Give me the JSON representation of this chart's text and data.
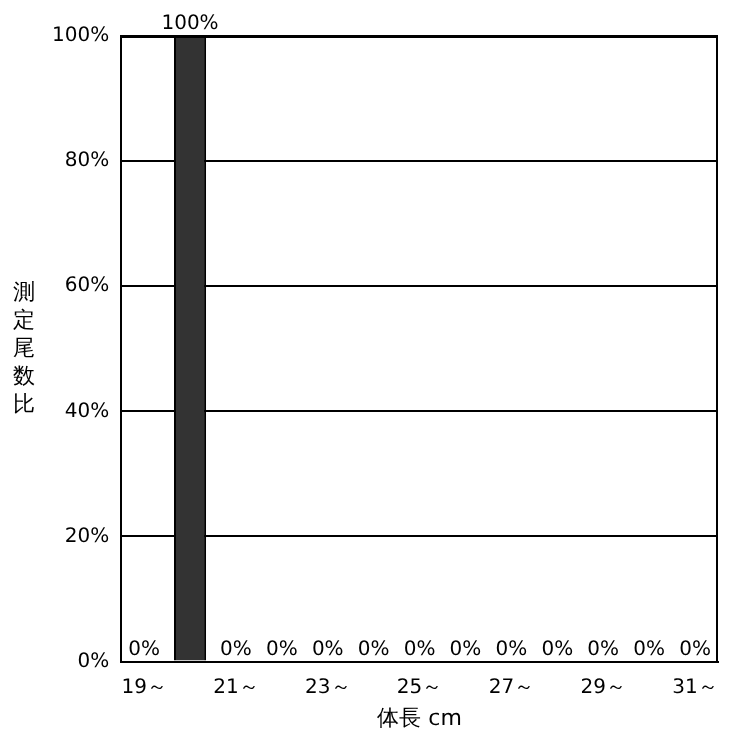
{
  "chart_data": {
    "type": "bar",
    "xlabel": "体長 cm",
    "ylabel": "測定尾数比",
    "categories": [
      "19～",
      null,
      "21～",
      null,
      "23～",
      null,
      "25～",
      null,
      "27～",
      null,
      "29～",
      null,
      "31～"
    ],
    "values": [
      0,
      100,
      0,
      0,
      0,
      0,
      0,
      0,
      0,
      0,
      0,
      0,
      0
    ],
    "value_labels": [
      "0%",
      "100%",
      "0%",
      "0%",
      "0%",
      "0%",
      "0%",
      "0%",
      "0%",
      "0%",
      "0%",
      "0%",
      "0%"
    ],
    "color": "#333333",
    "ylim": [
      0,
      100
    ],
    "yticks": [
      {
        "value": 0,
        "label": "0%"
      },
      {
        "value": 20,
        "label": "20%"
      },
      {
        "value": 40,
        "label": "40%"
      },
      {
        "value": 60,
        "label": "60%"
      },
      {
        "value": 80,
        "label": "80%"
      },
      {
        "value": 100,
        "label": "100%"
      }
    ],
    "grid": "y",
    "legend": false
  }
}
